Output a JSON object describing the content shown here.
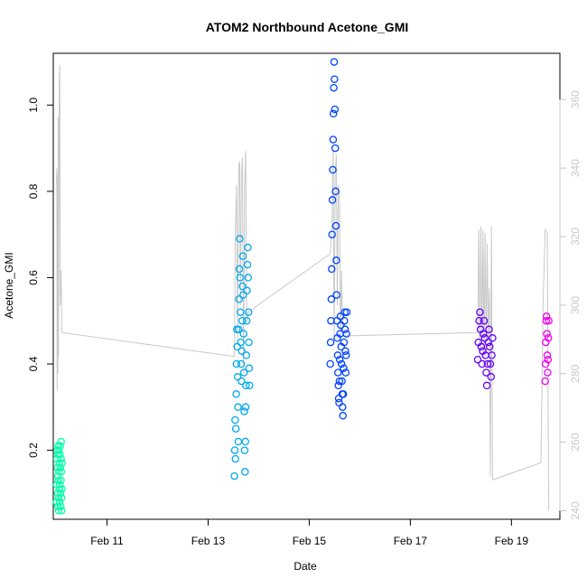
{
  "chart_data": {
    "type": "scatter",
    "title": "ATOM2 Northbound Acetone_GMI",
    "xlabel": "Date",
    "ylabel": "Acetone_GMI",
    "xlim": [
      "2017-02-09T22:30",
      "2017-02-19T23:00"
    ],
    "ylim": [
      0.04,
      1.12
    ],
    "y2lim": [
      237.5,
      373.5
    ],
    "x_ticks": [
      {
        "value": "2017-02-11T00:00",
        "label": "Feb 11"
      },
      {
        "value": "2017-02-13T00:00",
        "label": "Feb 13"
      },
      {
        "value": "2017-02-15T00:00",
        "label": "Feb 15"
      },
      {
        "value": "2017-02-17T00:00",
        "label": "Feb 17"
      },
      {
        "value": "2017-02-19T00:00",
        "label": "Feb 19"
      }
    ],
    "y_ticks": [
      {
        "value": 0.2,
        "label": "0.2"
      },
      {
        "value": 0.4,
        "label": "0.4"
      },
      {
        "value": 0.6,
        "label": "0.6"
      },
      {
        "value": 0.8,
        "label": "0.8"
      },
      {
        "value": 1.0,
        "label": "1.0"
      }
    ],
    "y2_ticks": [
      {
        "value": 240,
        "label": "240"
      },
      {
        "value": 260,
        "label": "260"
      },
      {
        "value": 280,
        "label": "280"
      },
      {
        "value": 300,
        "label": "300"
      },
      {
        "value": 320,
        "label": "320"
      },
      {
        "value": 340,
        "label": "340"
      },
      {
        "value": 360,
        "label": "360"
      }
    ],
    "grid": false,
    "series": [
      {
        "color": "#00ffaa",
        "points": [
          [
            "2017-02-10T00:05",
            0.08
          ],
          [
            "2017-02-10T00:10",
            0.12
          ],
          [
            "2017-02-10T00:15",
            0.18
          ],
          [
            "2017-02-10T00:20",
            0.2
          ],
          [
            "2017-02-10T00:25",
            0.16
          ],
          [
            "2017-02-10T00:30",
            0.1
          ],
          [
            "2017-02-10T00:35",
            0.07
          ],
          [
            "2017-02-10T00:40",
            0.14
          ],
          [
            "2017-02-10T00:45",
            0.19
          ],
          [
            "2017-02-10T00:50",
            0.21
          ],
          [
            "2017-02-10T00:55",
            0.13
          ],
          [
            "2017-02-10T01:00",
            0.09
          ],
          [
            "2017-02-10T01:05",
            0.06
          ],
          [
            "2017-02-10T01:10",
            0.15
          ],
          [
            "2017-02-10T01:15",
            0.2
          ],
          [
            "2017-02-10T01:20",
            0.17
          ],
          [
            "2017-02-10T01:25",
            0.11
          ],
          [
            "2017-02-10T01:30",
            0.08
          ],
          [
            "2017-02-10T01:35",
            0.12
          ],
          [
            "2017-02-10T01:40",
            0.19
          ],
          [
            "2017-02-10T01:45",
            0.21
          ],
          [
            "2017-02-10T01:50",
            0.16
          ],
          [
            "2017-02-10T01:55",
            0.1
          ],
          [
            "2017-02-10T02:00",
            0.07
          ],
          [
            "2017-02-10T02:05",
            0.13
          ],
          [
            "2017-02-10T02:10",
            0.18
          ],
          [
            "2017-02-10T02:15",
            0.22
          ],
          [
            "2017-02-10T02:20",
            0.15
          ],
          [
            "2017-02-10T02:25",
            0.09
          ],
          [
            "2017-02-10T02:30",
            0.06
          ],
          [
            "2017-02-10T02:35",
            0.11
          ],
          [
            "2017-02-10T02:40",
            0.17
          ]
        ]
      },
      {
        "color": "#00aaee",
        "points": [
          [
            "2017-02-13T12:30",
            0.14
          ],
          [
            "2017-02-13T12:40",
            0.2
          ],
          [
            "2017-02-13T12:50",
            0.27
          ],
          [
            "2017-02-13T13:00",
            0.18
          ],
          [
            "2017-02-13T13:10",
            0.25
          ],
          [
            "2017-02-13T13:20",
            0.33
          ],
          [
            "2017-02-13T13:30",
            0.4
          ],
          [
            "2017-02-13T13:40",
            0.48
          ],
          [
            "2017-02-13T13:50",
            0.44
          ],
          [
            "2017-02-13T14:00",
            0.37
          ],
          [
            "2017-02-13T14:10",
            0.3
          ],
          [
            "2017-02-13T14:20",
            0.22
          ],
          [
            "2017-02-13T14:30",
            0.48
          ],
          [
            "2017-02-13T14:40",
            0.55
          ],
          [
            "2017-02-13T14:50",
            0.62
          ],
          [
            "2017-02-13T15:00",
            0.69
          ],
          [
            "2017-02-13T15:10",
            0.6
          ],
          [
            "2017-02-13T15:20",
            0.52
          ],
          [
            "2017-02-13T15:30",
            0.45
          ],
          [
            "2017-02-13T15:40",
            0.4
          ],
          [
            "2017-02-13T15:50",
            0.36
          ],
          [
            "2017-02-13T16:00",
            0.43
          ],
          [
            "2017-02-13T16:10",
            0.5
          ],
          [
            "2017-02-13T16:20",
            0.58
          ],
          [
            "2017-02-13T16:30",
            0.65
          ],
          [
            "2017-02-13T16:40",
            0.56
          ],
          [
            "2017-02-13T16:50",
            0.47
          ],
          [
            "2017-02-13T17:00",
            0.38
          ],
          [
            "2017-02-13T17:10",
            0.29
          ],
          [
            "2017-02-13T17:20",
            0.2
          ],
          [
            "2017-02-13T17:30",
            0.15
          ],
          [
            "2017-02-13T17:40",
            0.22
          ],
          [
            "2017-02-13T17:50",
            0.3
          ],
          [
            "2017-02-13T18:00",
            0.35
          ],
          [
            "2017-02-13T18:10",
            0.42
          ],
          [
            "2017-02-13T18:20",
            0.5
          ],
          [
            "2017-02-13T18:30",
            0.57
          ],
          [
            "2017-02-13T18:40",
            0.63
          ],
          [
            "2017-02-13T18:50",
            0.67
          ],
          [
            "2017-02-13T19:00",
            0.6
          ],
          [
            "2017-02-13T19:10",
            0.52
          ],
          [
            "2017-02-13T19:20",
            0.45
          ],
          [
            "2017-02-13T19:30",
            0.39
          ],
          [
            "2017-02-13T19:40",
            0.35
          ]
        ]
      },
      {
        "color": "#0044ff",
        "points": [
          [
            "2017-02-15T10:00",
            0.4
          ],
          [
            "2017-02-15T10:10",
            0.45
          ],
          [
            "2017-02-15T10:20",
            0.5
          ],
          [
            "2017-02-15T10:30",
            0.55
          ],
          [
            "2017-02-15T10:40",
            0.62
          ],
          [
            "2017-02-15T10:50",
            0.7
          ],
          [
            "2017-02-15T11:00",
            0.78
          ],
          [
            "2017-02-15T11:10",
            0.85
          ],
          [
            "2017-02-15T11:20",
            0.92
          ],
          [
            "2017-02-15T11:30",
            0.98
          ],
          [
            "2017-02-15T11:40",
            1.04
          ],
          [
            "2017-02-15T11:50",
            1.1
          ],
          [
            "2017-02-15T12:00",
            1.06
          ],
          [
            "2017-02-15T12:10",
            0.99
          ],
          [
            "2017-02-15T12:20",
            0.9
          ],
          [
            "2017-02-15T12:30",
            0.8
          ],
          [
            "2017-02-15T12:40",
            0.72
          ],
          [
            "2017-02-15T12:50",
            0.64
          ],
          [
            "2017-02-15T13:00",
            0.56
          ],
          [
            "2017-02-15T13:10",
            0.5
          ],
          [
            "2017-02-15T13:20",
            0.46
          ],
          [
            "2017-02-15T13:30",
            0.42
          ],
          [
            "2017-02-15T13:40",
            0.38
          ],
          [
            "2017-02-15T13:50",
            0.35
          ],
          [
            "2017-02-15T14:00",
            0.32
          ],
          [
            "2017-02-15T14:10",
            0.31
          ],
          [
            "2017-02-15T14:20",
            0.36
          ],
          [
            "2017-02-15T14:30",
            0.41
          ],
          [
            "2017-02-15T14:40",
            0.47
          ],
          [
            "2017-02-15T14:50",
            0.51
          ],
          [
            "2017-02-15T15:00",
            0.49
          ],
          [
            "2017-02-15T15:10",
            0.44
          ],
          [
            "2017-02-15T15:20",
            0.4
          ],
          [
            "2017-02-15T15:30",
            0.36
          ],
          [
            "2017-02-15T15:40",
            0.33
          ],
          [
            "2017-02-15T15:50",
            0.3
          ],
          [
            "2017-02-15T16:00",
            0.28
          ],
          [
            "2017-02-15T16:10",
            0.33
          ],
          [
            "2017-02-15T16:20",
            0.39
          ],
          [
            "2017-02-15T16:30",
            0.45
          ],
          [
            "2017-02-15T16:40",
            0.5
          ],
          [
            "2017-02-15T16:50",
            0.52
          ],
          [
            "2017-02-15T17:00",
            0.48
          ],
          [
            "2017-02-15T17:10",
            0.43
          ],
          [
            "2017-02-15T17:20",
            0.38
          ],
          [
            "2017-02-15T17:30",
            0.42
          ],
          [
            "2017-02-15T17:40",
            0.47
          ],
          [
            "2017-02-15T17:50",
            0.52
          ]
        ]
      },
      {
        "color": "#6600ff",
        "points": [
          [
            "2017-02-18T08:00",
            0.41
          ],
          [
            "2017-02-18T08:20",
            0.45
          ],
          [
            "2017-02-18T08:40",
            0.5
          ],
          [
            "2017-02-18T09:00",
            0.52
          ],
          [
            "2017-02-18T09:20",
            0.48
          ],
          [
            "2017-02-18T09:40",
            0.44
          ],
          [
            "2017-02-18T10:00",
            0.4
          ],
          [
            "2017-02-18T10:20",
            0.43
          ],
          [
            "2017-02-18T10:40",
            0.47
          ],
          [
            "2017-02-18T11:00",
            0.5
          ],
          [
            "2017-02-18T11:20",
            0.46
          ],
          [
            "2017-02-18T11:40",
            0.42
          ],
          [
            "2017-02-18T12:00",
            0.38
          ],
          [
            "2017-02-18T12:20",
            0.35
          ],
          [
            "2017-02-18T12:40",
            0.4
          ],
          [
            "2017-02-18T13:00",
            0.45
          ],
          [
            "2017-02-18T13:20",
            0.48
          ],
          [
            "2017-02-18T13:40",
            0.44
          ],
          [
            "2017-02-18T14:00",
            0.4
          ],
          [
            "2017-02-18T14:20",
            0.37
          ],
          [
            "2017-02-18T14:40",
            0.42
          ],
          [
            "2017-02-18T15:00",
            0.46
          ]
        ]
      },
      {
        "color": "#ee00ee",
        "points": [
          [
            "2017-02-19T16:00",
            0.36
          ],
          [
            "2017-02-19T16:10",
            0.4
          ],
          [
            "2017-02-19T16:20",
            0.45
          ],
          [
            "2017-02-19T16:30",
            0.5
          ],
          [
            "2017-02-19T16:40",
            0.51
          ],
          [
            "2017-02-19T16:50",
            0.47
          ],
          [
            "2017-02-19T17:00",
            0.42
          ],
          [
            "2017-02-19T17:10",
            0.38
          ],
          [
            "2017-02-19T17:20",
            0.41
          ],
          [
            "2017-02-19T17:30",
            0.46
          ],
          [
            "2017-02-19T17:40",
            0.5
          ]
        ]
      }
    ],
    "secondary_line": {
      "color": "#c8c8c8",
      "axis": "right",
      "points": [
        [
          "2017-02-10T00:00",
          335
        ],
        [
          "2017-02-10T00:10",
          340
        ],
        [
          "2017-02-10T00:20",
          275
        ],
        [
          "2017-02-10T00:30",
          338
        ],
        [
          "2017-02-10T00:40",
          280
        ],
        [
          "2017-02-10T00:50",
          355
        ],
        [
          "2017-02-10T01:00",
          285
        ],
        [
          "2017-02-10T01:20",
          365
        ],
        [
          "2017-02-10T01:35",
          370
        ],
        [
          "2017-02-10T01:50",
          300
        ],
        [
          "2017-02-10T02:10",
          310
        ],
        [
          "2017-02-10T02:40",
          292
        ],
        [
          "2017-02-13T12:30",
          285
        ],
        [
          "2017-02-13T12:50",
          318
        ],
        [
          "2017-02-13T13:10",
          328
        ],
        [
          "2017-02-13T13:30",
          335
        ],
        [
          "2017-02-13T14:00",
          290
        ],
        [
          "2017-02-13T14:30",
          340
        ],
        [
          "2017-02-13T15:00",
          342
        ],
        [
          "2017-02-13T15:20",
          300
        ],
        [
          "2017-02-13T15:50",
          338
        ],
        [
          "2017-02-13T16:20",
          343
        ],
        [
          "2017-02-13T16:50",
          280
        ],
        [
          "2017-02-13T17:20",
          335
        ],
        [
          "2017-02-13T17:50",
          345
        ],
        [
          "2017-02-13T18:20",
          295
        ],
        [
          "2017-02-13T19:00",
          298
        ],
        [
          "2017-02-15T10:00",
          315
        ],
        [
          "2017-02-15T10:20",
          318
        ],
        [
          "2017-02-15T10:50",
          325
        ],
        [
          "2017-02-15T11:20",
          345
        ],
        [
          "2017-02-15T11:50",
          290
        ],
        [
          "2017-02-15T12:20",
          338
        ],
        [
          "2017-02-15T12:50",
          344
        ],
        [
          "2017-02-15T13:20",
          300
        ],
        [
          "2017-02-15T13:50",
          335
        ],
        [
          "2017-02-15T14:20",
          333
        ],
        [
          "2017-02-15T14:50",
          288
        ],
        [
          "2017-02-15T15:20",
          310
        ],
        [
          "2017-02-15T16:00",
          291
        ],
        [
          "2017-02-18T08:00",
          292
        ],
        [
          "2017-02-18T08:30",
          322
        ],
        [
          "2017-02-18T09:00",
          285
        ],
        [
          "2017-02-18T09:30",
          323
        ],
        [
          "2017-02-18T10:00",
          290
        ],
        [
          "2017-02-18T10:30",
          322
        ],
        [
          "2017-02-18T11:00",
          283
        ],
        [
          "2017-02-18T11:30",
          321
        ],
        [
          "2017-02-18T12:00",
          285
        ],
        [
          "2017-02-18T12:30",
          318
        ],
        [
          "2017-02-18T13:00",
          290
        ],
        [
          "2017-02-18T13:30",
          305
        ],
        [
          "2017-02-18T14:00",
          250
        ],
        [
          "2017-02-18T14:30",
          323
        ],
        [
          "2017-02-18T15:00",
          249
        ],
        [
          "2017-02-19T14:00",
          254
        ],
        [
          "2017-02-19T15:00",
          300
        ],
        [
          "2017-02-19T16:00",
          322
        ],
        [
          "2017-02-19T17:00",
          321
        ],
        [
          "2017-02-19T17:40",
          240
        ]
      ]
    }
  }
}
